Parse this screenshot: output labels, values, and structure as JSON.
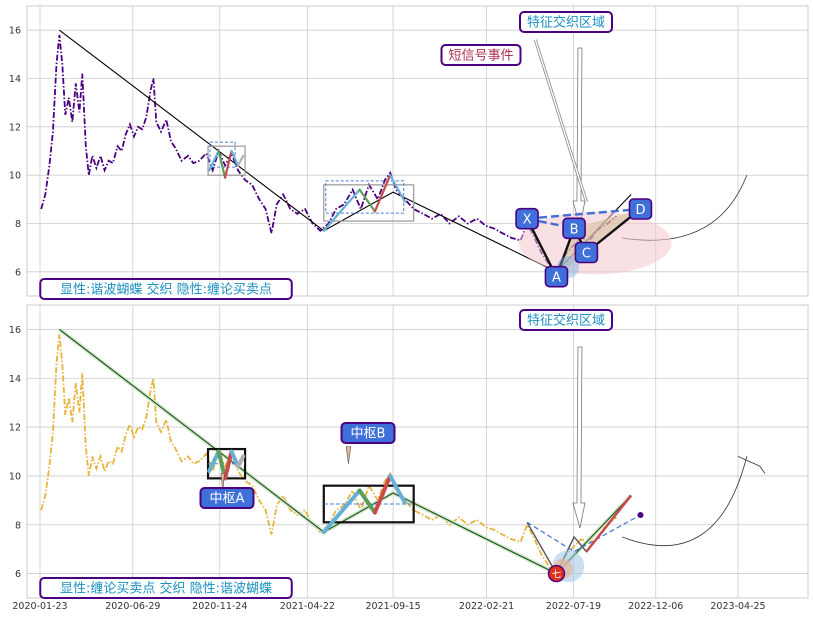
{
  "chart_data": [
    {
      "type": "line",
      "panel": "top",
      "title": "",
      "xlabel": "",
      "ylabel": "",
      "ylim": [
        5,
        17
      ],
      "yticks": [
        6,
        8,
        10,
        12,
        14,
        16
      ],
      "grid": true,
      "series": [
        {
          "style": "dashdot",
          "color": "#4b0082",
          "points": [
            [
              "2020-01-25",
              8.6
            ],
            [
              "2020-02-01",
              9.2
            ],
            [
              "2020-02-08",
              10.4
            ],
            [
              "2020-02-14",
              11.8
            ],
            [
              "2020-02-20",
              14.6
            ],
            [
              "2020-02-25",
              15.8
            ],
            [
              "2020-03-01",
              14.6
            ],
            [
              "2020-03-06",
              12.5
            ],
            [
              "2020-03-12",
              13.2
            ],
            [
              "2020-03-18",
              12.2
            ],
            [
              "2020-03-24",
              13.8
            ],
            [
              "2020-03-30",
              12.6
            ],
            [
              "2020-04-04",
              14.2
            ],
            [
              "2020-04-10",
              11.2
            ],
            [
              "2020-04-15",
              10.0
            ],
            [
              "2020-04-21",
              10.8
            ],
            [
              "2020-04-28",
              10.3
            ],
            [
              "2020-05-05",
              10.8
            ],
            [
              "2020-05-12",
              10.2
            ],
            [
              "2020-05-19",
              10.6
            ],
            [
              "2020-05-26",
              10.5
            ],
            [
              "2020-06-03",
              11.2
            ],
            [
              "2020-06-10",
              11.0
            ],
            [
              "2020-06-17",
              11.7
            ],
            [
              "2020-06-24",
              12.1
            ],
            [
              "2020-07-01",
              11.6
            ],
            [
              "2020-07-08",
              12.0
            ],
            [
              "2020-07-15",
              11.9
            ],
            [
              "2020-07-22",
              12.4
            ],
            [
              "2020-07-29",
              13.5
            ],
            [
              "2020-08-03",
              14.0
            ],
            [
              "2020-08-08",
              12.2
            ],
            [
              "2020-08-16",
              11.8
            ],
            [
              "2020-08-25",
              12.3
            ],
            [
              "2020-09-02",
              11.4
            ],
            [
              "2020-09-10",
              11.1
            ],
            [
              "2020-09-20",
              10.6
            ],
            [
              "2020-10-01",
              10.8
            ],
            [
              "2020-10-10",
              10.5
            ],
            [
              "2020-10-20",
              10.6
            ],
            [
              "2020-11-01",
              10.9
            ],
            [
              "2020-11-12",
              10.2
            ],
            [
              "2020-11-22",
              11.0
            ],
            [
              "2020-12-03",
              10.4
            ],
            [
              "2020-12-14",
              10.9
            ],
            [
              "2020-12-25",
              10.2
            ],
            [
              "2021-01-06",
              9.8
            ],
            [
              "2021-01-18",
              9.6
            ],
            [
              "2021-01-30",
              9.0
            ],
            [
              "2021-02-10",
              8.6
            ],
            [
              "2021-02-20",
              7.6
            ],
            [
              "2021-03-01",
              8.8
            ],
            [
              "2021-03-12",
              9.2
            ],
            [
              "2021-03-24",
              8.6
            ],
            [
              "2021-04-05",
              8.4
            ],
            [
              "2021-04-18",
              8.6
            ],
            [
              "2021-05-01",
              8.0
            ],
            [
              "2021-05-14",
              7.7
            ],
            [
              "2021-05-28",
              8.0
            ],
            [
              "2021-06-10",
              8.6
            ],
            [
              "2021-06-24",
              8.8
            ],
            [
              "2021-07-08",
              9.4
            ],
            [
              "2021-07-22",
              8.6
            ],
            [
              "2021-08-05",
              9.6
            ],
            [
              "2021-08-20",
              9.0
            ],
            [
              "2021-09-01",
              9.8
            ],
            [
              "2021-09-10",
              10.1
            ],
            [
              "2021-09-20",
              9.4
            ],
            [
              "2021-10-05",
              9.0
            ],
            [
              "2021-10-20",
              8.6
            ],
            [
              "2021-11-05",
              8.4
            ],
            [
              "2021-11-20",
              8.2
            ],
            [
              "2021-12-05",
              8.4
            ],
            [
              "2021-12-20",
              8.0
            ],
            [
              "2022-01-05",
              8.3
            ],
            [
              "2022-01-20",
              8.0
            ],
            [
              "2022-02-05",
              8.2
            ],
            [
              "2022-02-20",
              7.9
            ],
            [
              "2022-03-05",
              7.8
            ],
            [
              "2022-03-20",
              7.6
            ],
            [
              "2022-04-05",
              7.4
            ],
            [
              "2022-04-20",
              7.3
            ],
            [
              "2022-05-01",
              8.0
            ],
            [
              "2022-05-10",
              7.6
            ],
            [
              "2022-05-25",
              6.8
            ],
            [
              "2022-06-10",
              6.2
            ],
            [
              "2022-06-20",
              6.0
            ],
            [
              "2022-07-01",
              6.6
            ],
            [
              "2022-07-15",
              7.0
            ],
            [
              "2022-08-01",
              7.4
            ],
            [
              "2022-08-15",
              7.3
            ],
            [
              "2022-09-01",
              7.8
            ],
            [
              "2022-09-15",
              8.0
            ],
            [
              "2022-09-30",
              8.3
            ]
          ]
        },
        {
          "style": "solid",
          "color": "#000000",
          "points": [
            [
              "2020-02-25",
              16.0
            ],
            [
              "2021-05-20",
              7.7
            ],
            [
              "2021-09-15",
              9.3
            ],
            [
              "2022-06-20",
              6.0
            ],
            [
              "2022-10-25",
              9.2
            ]
          ]
        }
      ],
      "central_boxes": [
        {
          "x0": "2020-11-04",
          "x1": "2021-01-06",
          "y0": 10.0,
          "y1": 11.2,
          "zigzag": [
            [
              "2020-11-06",
              10.2
            ],
            [
              "2020-11-22",
              11.0
            ],
            [
              "2020-12-03",
              9.9
            ],
            [
              "2020-12-14",
              11.0
            ],
            [
              "2020-12-25",
              10.4
            ],
            [
              "2021-01-03",
              10.8
            ]
          ]
        },
        {
          "x0": "2021-05-20",
          "x1": "2021-10-20",
          "y0": 8.1,
          "y1": 9.6,
          "zigzag": [
            [
              "2021-05-20",
              7.7
            ],
            [
              "2021-07-20",
              9.4
            ],
            [
              "2021-08-15",
              8.5
            ],
            [
              "2021-09-10",
              10.0
            ],
            [
              "2021-10-05",
              8.9
            ]
          ]
        }
      ],
      "harmonic": {
        "points": [
          {
            "label": "X",
            "x": "2022-05-01",
            "y": 8.2
          },
          {
            "label": "A",
            "x": "2022-06-20",
            "y": 5.8
          },
          {
            "label": "B",
            "x": "2022-07-20",
            "y": 7.8
          },
          {
            "label": "C",
            "x": "2022-08-10",
            "y": 6.8
          },
          {
            "label": "D",
            "x": "2022-11-10",
            "y": 8.6
          }
        ],
        "ellipse": {
          "cx": "2022-08-25",
          "cy": 7.2,
          "rx_days": 130,
          "ry": 1.3
        }
      },
      "annotations": [
        {
          "text": "特征交织区域",
          "anchor": "top"
        },
        {
          "text": "短信号事件",
          "anchor": "top"
        }
      ],
      "footer_label": "显性:谐波蝴蝶 交织 隐性:缠论买卖点"
    },
    {
      "type": "line",
      "panel": "bottom",
      "title": "",
      "xlabel": "",
      "ylabel": "",
      "ylim": [
        5,
        17
      ],
      "yticks": [
        6,
        8,
        10,
        12,
        14,
        16
      ],
      "grid": true,
      "xticks": [
        "2020-01-23",
        "2020-06-29",
        "2020-11-24",
        "2021-04-22",
        "2021-09-15",
        "2022-02-21",
        "2022-07-19",
        "2022-12-06",
        "2023-04-25"
      ],
      "series": [
        {
          "style": "dashdot",
          "color": "#e8b33a",
          "points": "same as top panel price"
        },
        {
          "style": "solid",
          "color": "#1a4d1a",
          "points": [
            [
              "2020-02-25",
              16.0
            ],
            [
              "2021-05-20",
              7.7
            ],
            [
              "2021-09-15",
              9.3
            ],
            [
              "2022-06-20",
              6.0
            ],
            [
              "2022-10-25",
              9.2
            ]
          ]
        }
      ],
      "central_boxes": [
        {
          "label": "中枢A",
          "x0": "2020-11-04",
          "x1": "2021-01-06",
          "y0": 9.9,
          "y1": 11.1
        },
        {
          "label": "中枢B",
          "x0": "2021-05-20",
          "x1": "2021-10-20",
          "y0": 8.1,
          "y1": 9.6
        }
      ],
      "buy_point": {
        "label": "七",
        "x": "2022-06-20",
        "y": 6.0
      },
      "annotations": [
        {
          "text": "特征交织区域",
          "anchor": "top"
        },
        {
          "text": "中枢A"
        },
        {
          "text": "中枢B"
        }
      ],
      "footer_label": "显性:缠论买卖点 交织 隐性:谐波蝴蝶"
    }
  ],
  "colors": {
    "grid": "#cccccc",
    "panel_bg": "#ffffff",
    "label_box_border": "#4b0082",
    "label_text_teal": "#1a8fc0",
    "label_text_red": "#b03050",
    "node_fill": "#3f6fd8",
    "ellipse_fill": "#f4c7cc"
  }
}
